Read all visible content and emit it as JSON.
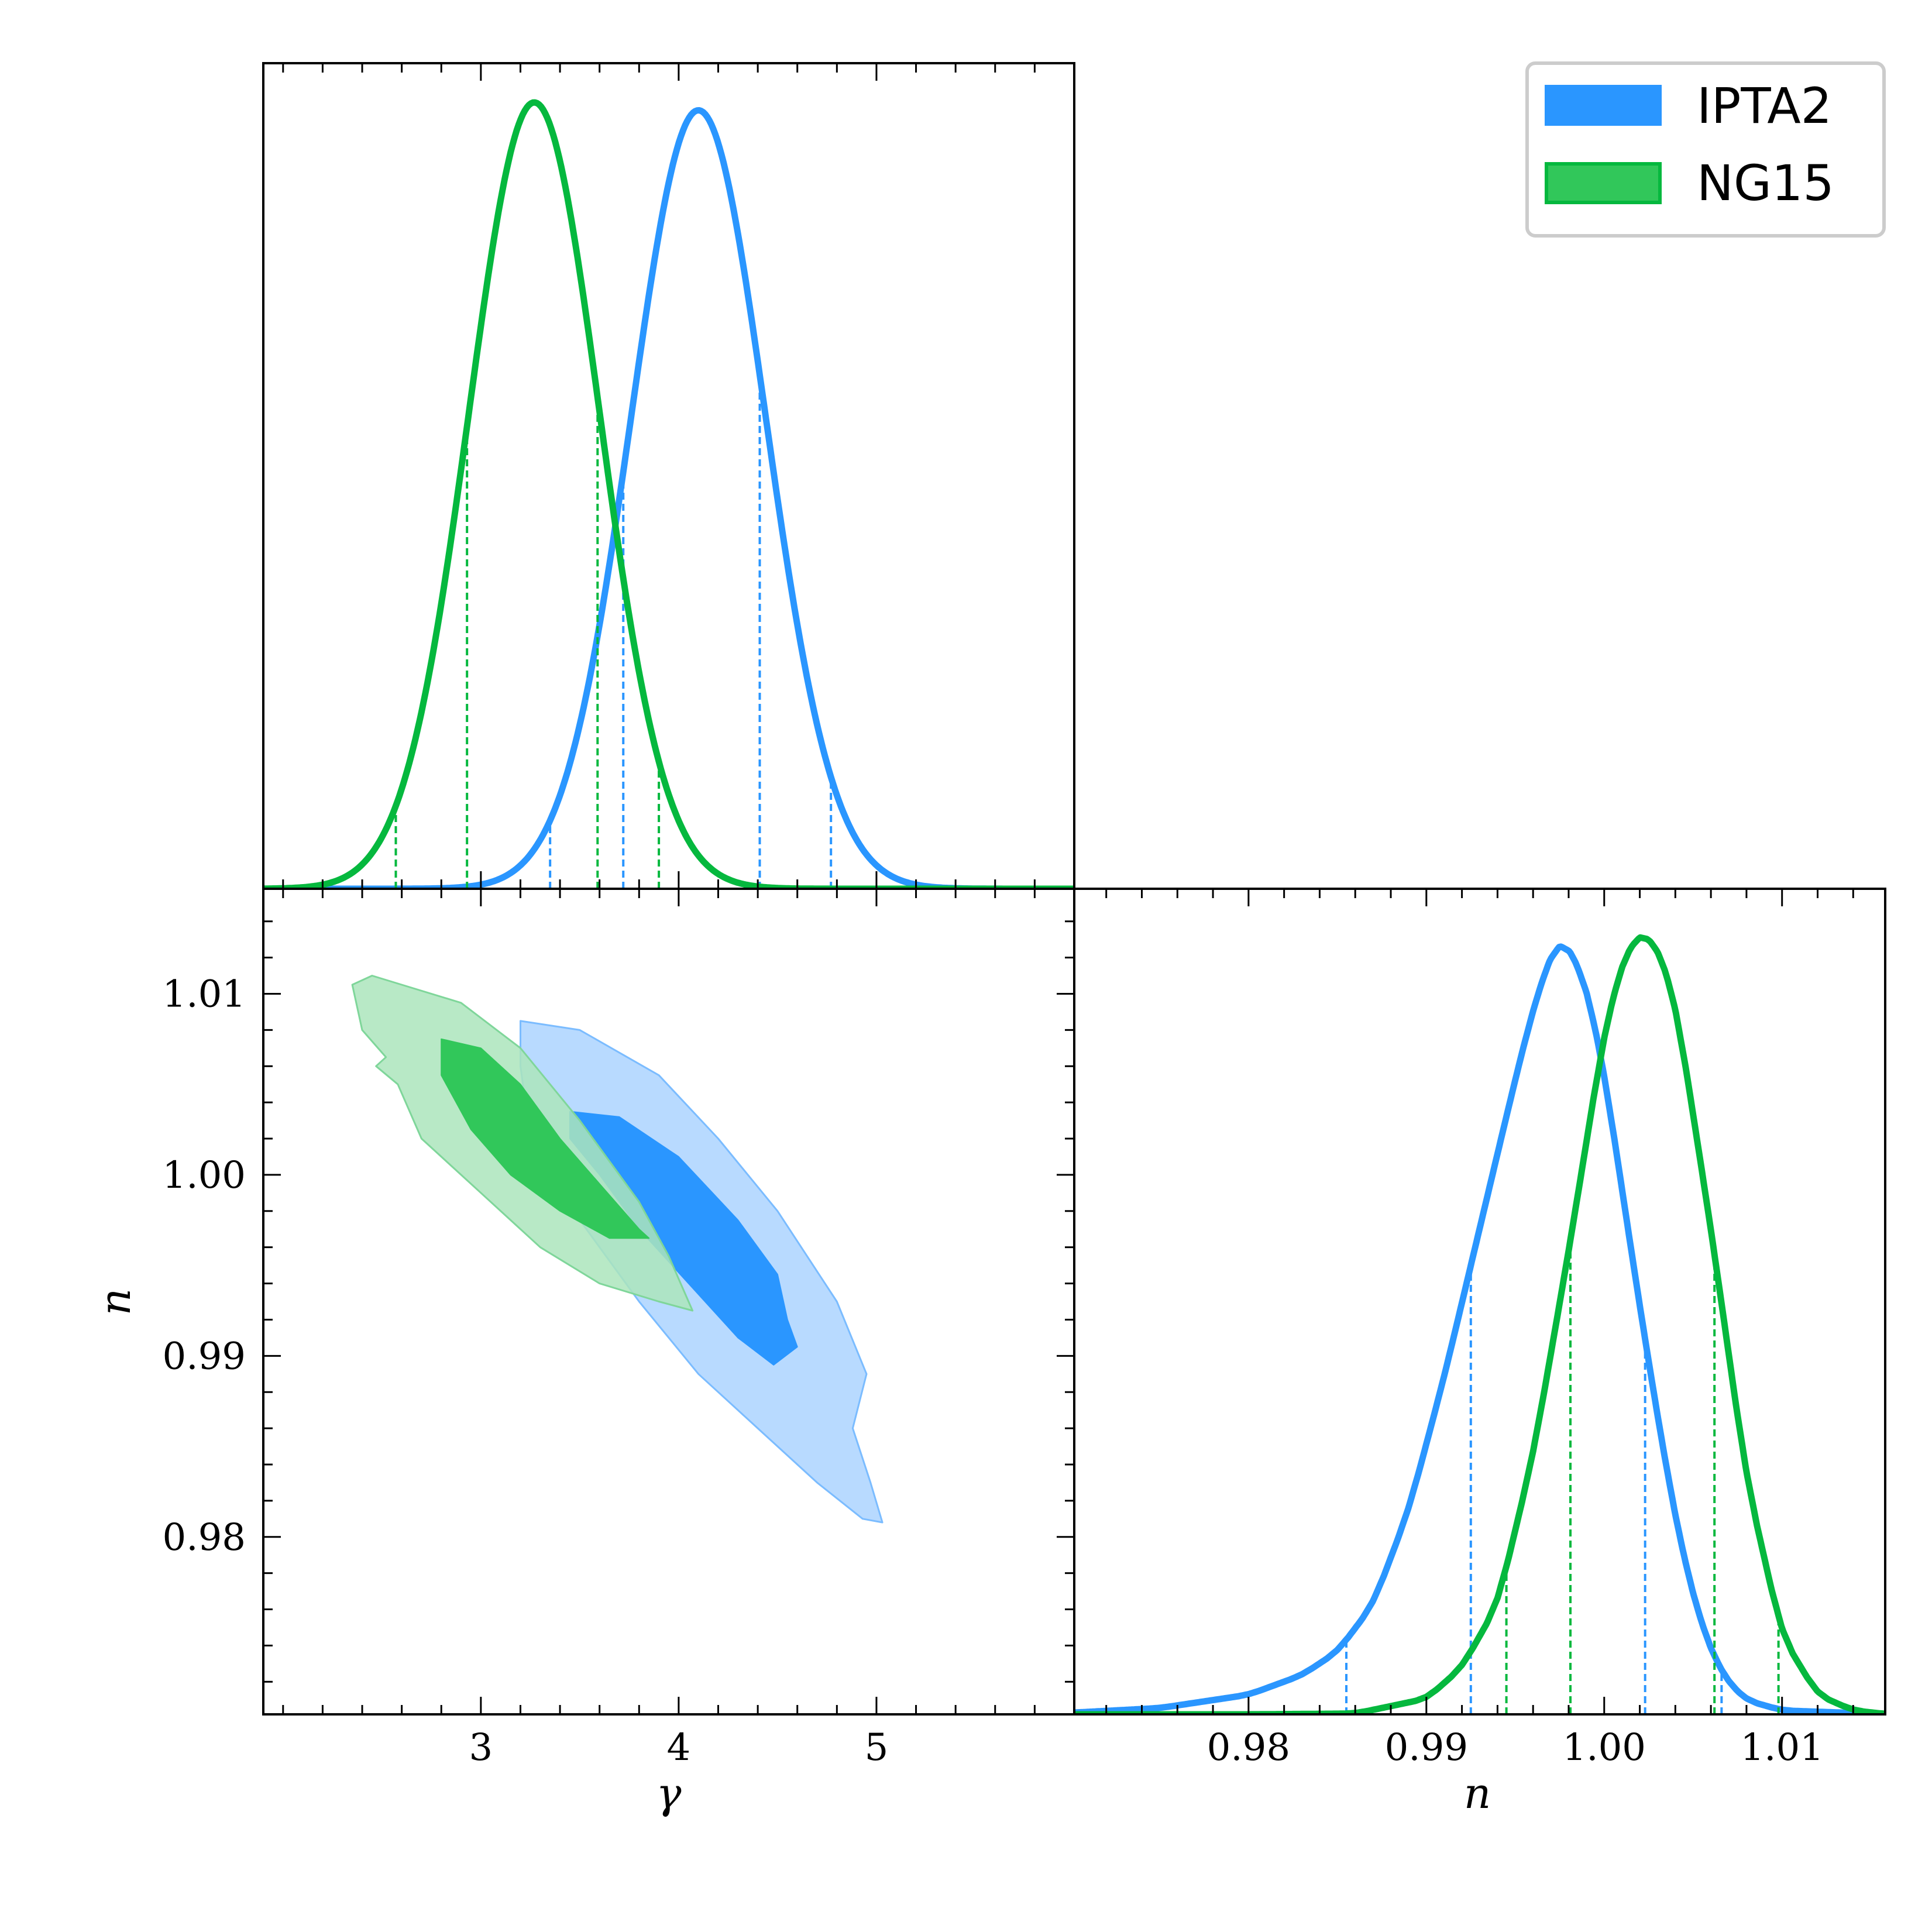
{
  "chart_data": {
    "type": "corner",
    "series": [
      {
        "name": "IPTA2",
        "color": "#2a96ff",
        "gamma": {
          "mean": 4.1,
          "sd": 0.34,
          "peak": 0.99,
          "credible_bounds": [
            3.35,
            3.72,
            4.41,
            4.77
          ]
        },
        "n": {
          "curve": [
            [
              0.97,
              0.002
            ],
            [
              0.975,
              0.008
            ],
            [
              0.98,
              0.025
            ],
            [
              0.983,
              0.05
            ],
            [
              0.985,
              0.08
            ],
            [
              0.987,
              0.14
            ],
            [
              0.989,
              0.26
            ],
            [
              0.991,
              0.43
            ],
            [
              0.993,
              0.62
            ],
            [
              0.995,
              0.81
            ],
            [
              0.996,
              0.9
            ],
            [
              0.997,
              0.97
            ],
            [
              0.9975,
              0.99
            ],
            [
              0.998,
              0.98
            ],
            [
              0.999,
              0.93
            ],
            [
              1.0,
              0.82
            ],
            [
              1.001,
              0.67
            ],
            [
              1.002,
              0.52
            ],
            [
              1.003,
              0.38
            ],
            [
              1.004,
              0.25
            ],
            [
              1.005,
              0.15
            ],
            [
              1.006,
              0.08
            ],
            [
              1.007,
              0.04
            ],
            [
              1.008,
              0.018
            ],
            [
              1.01,
              0.005
            ],
            [
              1.016,
              0.0
            ]
          ],
          "credible_bounds": [
            0.9855,
            0.9925,
            1.0023,
            1.0066
          ]
        },
        "contours": {
          "outer": [
            [
              3.2,
              1.0085
            ],
            [
              3.5,
              1.008
            ],
            [
              3.9,
              1.0055
            ],
            [
              4.2,
              1.002
            ],
            [
              4.5,
              0.998
            ],
            [
              4.8,
              0.993
            ],
            [
              4.95,
              0.989
            ],
            [
              4.88,
              0.986
            ],
            [
              4.97,
              0.983
            ],
            [
              5.03,
              0.9808
            ],
            [
              4.93,
              0.981
            ],
            [
              4.7,
              0.983
            ],
            [
              4.4,
              0.986
            ],
            [
              4.1,
              0.989
            ],
            [
              3.8,
              0.993
            ],
            [
              3.5,
              0.9975
            ],
            [
              3.25,
              1.002
            ],
            [
              3.2,
              1.006
            ]
          ],
          "inner": [
            [
              3.45,
              1.0035
            ],
            [
              3.7,
              1.0032
            ],
            [
              4.0,
              1.001
            ],
            [
              4.3,
              0.9975
            ],
            [
              4.5,
              0.9945
            ],
            [
              4.55,
              0.992
            ],
            [
              4.6,
              0.9905
            ],
            [
              4.48,
              0.9895
            ],
            [
              4.3,
              0.991
            ],
            [
              4.05,
              0.994
            ],
            [
              3.8,
              0.997
            ],
            [
              3.6,
              1.0
            ],
            [
              3.45,
              1.002
            ]
          ]
        }
      },
      {
        "name": "NG15",
        "color": "#05b83e",
        "gamma": {
          "mean": 3.27,
          "sd": 0.33,
          "peak": 1.0,
          "credible_bounds": [
            2.57,
            2.93,
            3.59,
            3.9
          ]
        },
        "n": {
          "curve": [
            [
              0.98,
              0.0
            ],
            [
              0.986,
              0.001
            ],
            [
              0.99,
              0.02
            ],
            [
              0.992,
              0.06
            ],
            [
              0.994,
              0.14
            ],
            [
              0.996,
              0.33
            ],
            [
              0.998,
              0.59
            ],
            [
              1.0,
              0.87
            ],
            [
              1.001,
              0.96
            ],
            [
              1.002,
              1.0
            ],
            [
              1.003,
              0.98
            ],
            [
              1.004,
              0.91
            ],
            [
              1.006,
              0.62
            ],
            [
              1.008,
              0.3
            ],
            [
              1.01,
              0.1
            ],
            [
              1.012,
              0.025
            ],
            [
              1.014,
              0.005
            ],
            [
              1.016,
              0.0
            ]
          ],
          "credible_bounds": [
            0.9945,
            0.9981,
            1.0062,
            1.0098
          ]
        },
        "contours": {
          "outer": [
            [
              2.45,
              1.011
            ],
            [
              2.6,
              1.0105
            ],
            [
              2.9,
              1.0095
            ],
            [
              3.2,
              1.007
            ],
            [
              3.5,
              1.003
            ],
            [
              3.8,
              0.9985
            ],
            [
              3.95,
              0.9955
            ],
            [
              4.07,
              0.9925
            ],
            [
              3.9,
              0.993
            ],
            [
              3.6,
              0.994
            ],
            [
              3.3,
              0.996
            ],
            [
              3.0,
              0.999
            ],
            [
              2.7,
              1.002
            ],
            [
              2.58,
              1.005
            ],
            [
              2.47,
              1.006
            ],
            [
              2.52,
              1.0065
            ],
            [
              2.4,
              1.008
            ],
            [
              2.35,
              1.0105
            ]
          ],
          "inner": [
            [
              2.8,
              1.0075
            ],
            [
              3.0,
              1.007
            ],
            [
              3.2,
              1.005
            ],
            [
              3.4,
              1.002
            ],
            [
              3.6,
              0.9995
            ],
            [
              3.8,
              0.997
            ],
            [
              3.85,
              0.9965
            ],
            [
              3.65,
              0.9965
            ],
            [
              3.4,
              0.998
            ],
            [
              3.15,
              1.0
            ],
            [
              2.95,
              1.0025
            ],
            [
              2.8,
              1.0055
            ]
          ]
        }
      }
    ],
    "axes": {
      "gamma": {
        "label": "γ",
        "range": [
          1.9,
          6.0
        ],
        "ticks": [
          3,
          4,
          5
        ],
        "tick_labels": [
          "3",
          "4",
          "5"
        ],
        "minor_step": 0.2
      },
      "n": {
        "label": "n",
        "range": [
          0.9702,
          1.0158
        ],
        "ticks": [
          0.98,
          0.99,
          1.0,
          1.01
        ],
        "tick_labels": [
          "0.98",
          "0.99",
          "1.00",
          "1.01"
        ],
        "minor_step": 0.002
      }
    },
    "legend": {
      "position": "top-right",
      "entries": [
        "IPTA2",
        "NG15"
      ]
    }
  }
}
